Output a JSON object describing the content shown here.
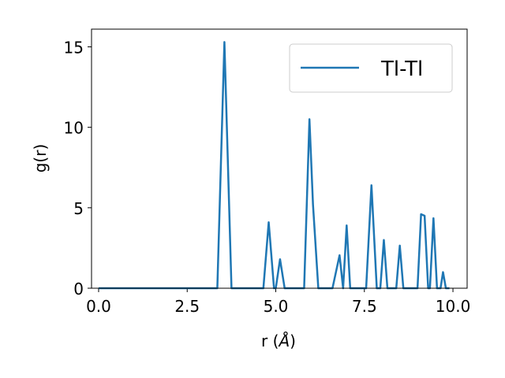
{
  "chart_data": {
    "type": "line",
    "xlabel_prefix": "r (",
    "xlabel_symbol": "Å",
    "xlabel_suffix": ")",
    "ylabel": "g(r)",
    "xlim": [
      -0.2,
      10.4
    ],
    "ylim": [
      0,
      16.1
    ],
    "xticks": [
      0.0,
      2.5,
      5.0,
      7.5,
      10.0
    ],
    "xtick_labels": [
      "0.0",
      "2.5",
      "5.0",
      "7.5",
      "10.0"
    ],
    "yticks": [
      0,
      5,
      10,
      15
    ],
    "ytick_labels": [
      "0",
      "5",
      "10",
      "15"
    ],
    "grid": false,
    "legend_position": "top-right",
    "series": [
      {
        "name": "Tl-Tl",
        "color": "#1f77b4",
        "x": [
          0.0,
          3.35,
          3.55,
          3.75,
          4.65,
          4.8,
          4.95,
          5.0,
          5.12,
          5.25,
          5.8,
          5.95,
          6.05,
          6.2,
          6.6,
          6.8,
          6.9,
          7.0,
          7.1,
          7.55,
          7.7,
          7.85,
          7.95,
          8.05,
          8.15,
          8.4,
          8.5,
          8.6,
          9.0,
          9.1,
          9.2,
          9.3,
          9.35,
          9.45,
          9.55,
          9.65,
          9.72,
          9.8,
          9.9
        ],
        "y": [
          0,
          0,
          15.3,
          0,
          0,
          4.1,
          0,
          0,
          1.8,
          0,
          0,
          10.5,
          5.2,
          0,
          0,
          2.05,
          0,
          3.9,
          0,
          0,
          6.4,
          0,
          0,
          3.0,
          0,
          0,
          2.65,
          0,
          0,
          4.6,
          4.5,
          0,
          0,
          4.35,
          0,
          0,
          1.0,
          0,
          0
        ]
      }
    ]
  }
}
